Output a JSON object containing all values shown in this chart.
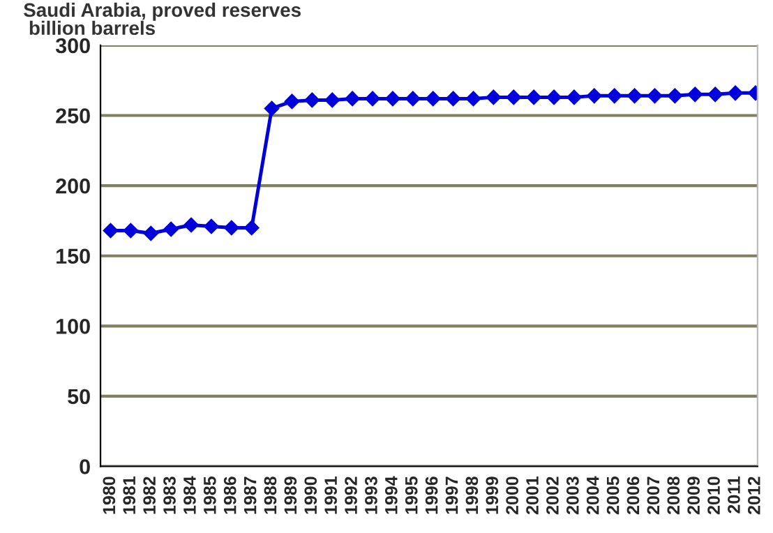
{
  "chart_data": {
    "type": "line",
    "title": "Saudi Arabia, proved reserves\n billion barrels",
    "categories": [
      "1980",
      "1981",
      "1982",
      "1983",
      "1984",
      "1985",
      "1986",
      "1987",
      "1988",
      "1989",
      "1990",
      "1991",
      "1992",
      "1993",
      "1994",
      "1995",
      "1996",
      "1997",
      "1998",
      "1999",
      "2000",
      "2001",
      "2002",
      "2003",
      "2004",
      "2005",
      "2006",
      "2007",
      "2008",
      "2009",
      "2010",
      "2011",
      "2012"
    ],
    "series": [
      {
        "color": "#0000dd",
        "values": [
          168,
          168,
          166,
          169,
          172,
          171,
          170,
          170,
          255,
          260,
          261,
          261,
          262,
          262,
          262,
          262,
          262,
          262,
          262,
          263,
          263,
          263,
          263,
          263,
          264,
          264,
          264,
          264,
          264,
          265,
          265,
          266,
          266
        ]
      }
    ],
    "ylim": [
      0,
      300
    ],
    "yticks": [
      0,
      50,
      100,
      150,
      200,
      250,
      300
    ],
    "grid": "y",
    "marker": "diamond",
    "line_style": "solid"
  }
}
